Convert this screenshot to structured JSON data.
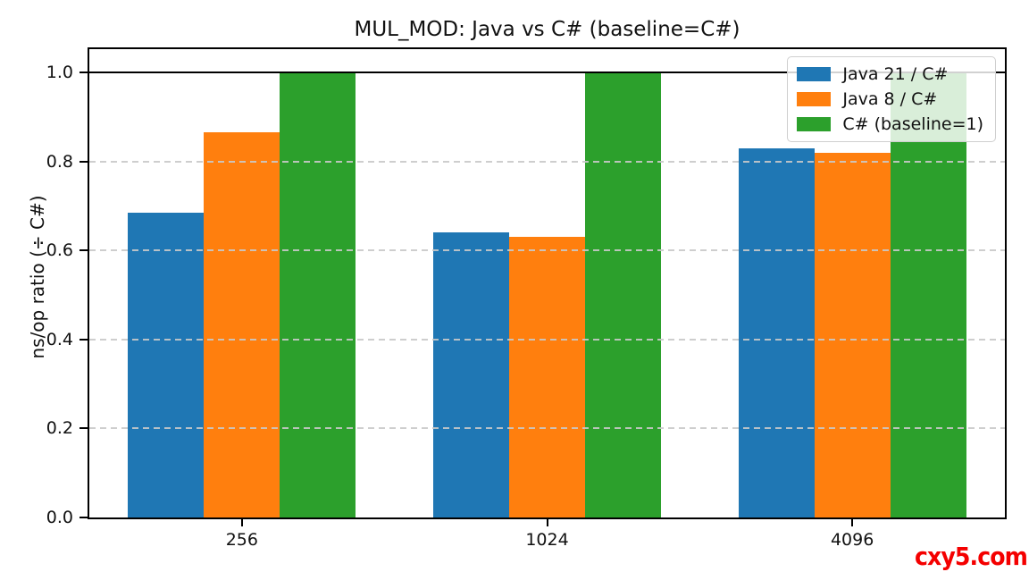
{
  "title": "MUL_MOD: Java vs C# (baseline=C#)",
  "watermark": {
    "text": "cxy5.com",
    "color": "#f40000"
  },
  "chart_data": {
    "type": "bar",
    "title": "MUL_MOD: Java vs C# (baseline=C#)",
    "xlabel": "",
    "ylabel": "ns/op ratio (÷ C#)",
    "categories": [
      "256",
      "1024",
      "4096"
    ],
    "series": [
      {
        "name": "Java 21 / C#",
        "color": "#1f77b4",
        "values": [
          0.685,
          0.64,
          0.83
        ]
      },
      {
        "name": "Java 8 / C#",
        "color": "#ff7f0e",
        "values": [
          0.865,
          0.63,
          0.82
        ]
      },
      {
        "name": "C# (baseline=1)",
        "color": "#2ca02c",
        "values": [
          1.0,
          1.0,
          1.0
        ]
      }
    ],
    "ylim": [
      0.0,
      1.052
    ],
    "yticks": [
      0.0,
      0.2,
      0.4,
      0.6,
      0.8,
      1.0
    ],
    "ytick_labels": [
      "0.0",
      "0.2",
      "0.4",
      "0.6",
      "0.8",
      "1.0"
    ],
    "baseline_y": 1.0,
    "grid": "horizontal-dashed",
    "gridline_color": "#c9c9c9",
    "legend_position": "upper-right"
  }
}
